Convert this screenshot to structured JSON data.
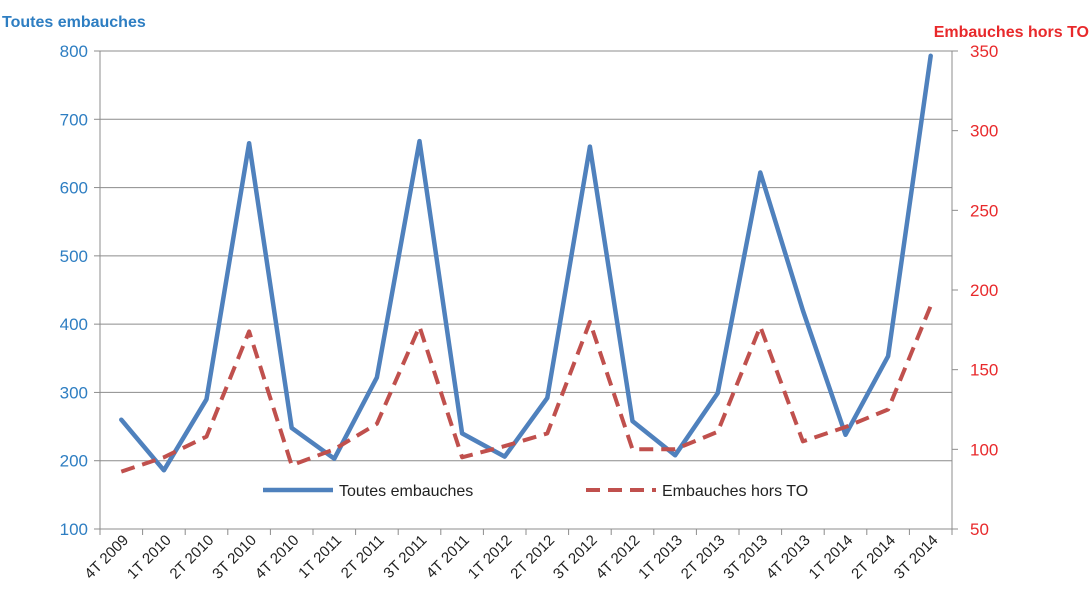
{
  "chart_data": {
    "type": "line",
    "y_axis_left": {
      "title": "Toutes embauches",
      "ylim": [
        100,
        800
      ],
      "ticks": [
        "100",
        "200",
        "300",
        "400",
        "500",
        "600",
        "700",
        "800"
      ],
      "color": "#2E7EC2"
    },
    "y_axis_right": {
      "title": "Embauches hors TO",
      "ylim": [
        50,
        350
      ],
      "ticks": [
        "50",
        "100",
        "150",
        "200",
        "250",
        "300",
        "350"
      ],
      "color": "#E8292B"
    },
    "categories": [
      "4T 2009",
      "1T 2010",
      "2T 2010",
      "3T 2010",
      "4T 2010",
      "1T 2011",
      "2T 2011",
      "3T 2011",
      "4T 2011",
      "1T 2012",
      "2T 2012",
      "3T 2012",
      "4T 2012",
      "1T 2013",
      "2T 2013",
      "3T 2013",
      "4T 2013",
      "1T 2014",
      "2T 2014",
      "3T 2014"
    ],
    "series": [
      {
        "name": "Toutes embauches",
        "axis": "left",
        "style": "solid",
        "color": "#4F81BD",
        "values": [
          260,
          186,
          290,
          665,
          248,
          203,
          322,
          668,
          240,
          206,
          292,
          660,
          258,
          208,
          299,
          622,
          420,
          238,
          353,
          793
        ]
      },
      {
        "name": "Embauches hors TO",
        "axis": "right",
        "style": "dashed",
        "color": "#C0504D",
        "values": [
          86,
          95,
          108,
          174,
          90,
          100,
          116,
          177,
          95,
          102,
          110,
          180,
          100,
          100,
          111,
          177,
          105,
          114,
          125,
          190
        ]
      }
    ],
    "grid": true,
    "legend_position": "inside-bottom-center"
  }
}
